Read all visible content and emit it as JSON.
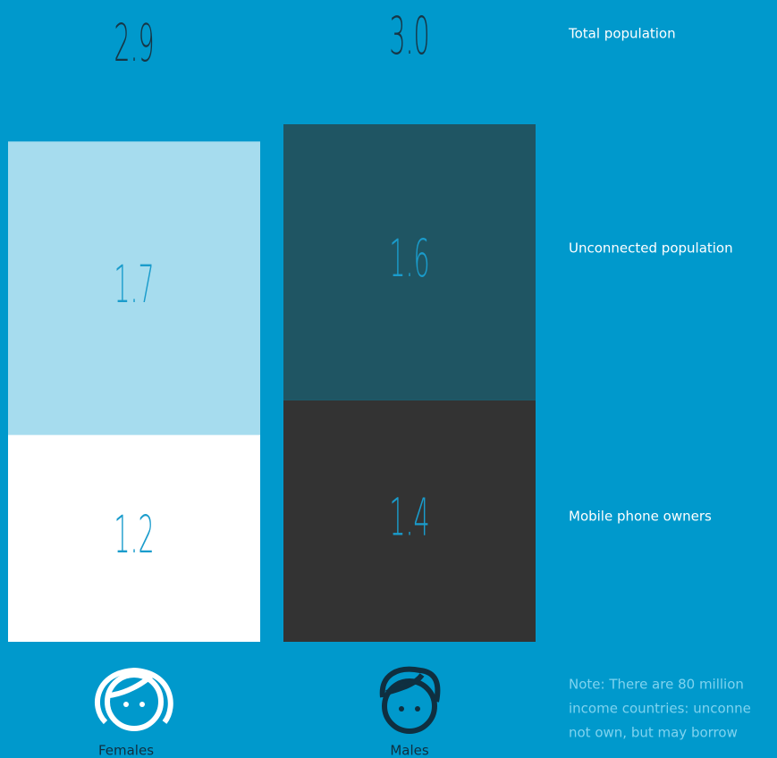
{
  "chart_data": {
    "type": "stacked_bar",
    "categories": [
      "Females",
      "Males"
    ],
    "totals": {
      "name": "Total population",
      "values": [
        2.9,
        3
      ],
      "value_labels": [
        "2.9",
        "3.0"
      ]
    },
    "series": [
      {
        "name": "Mobile phone owners",
        "colors": [
          "#ffffff",
          "#333333"
        ],
        "values": [
          1.2,
          1.4
        ]
      },
      {
        "name": "Unconnected population",
        "colors": [
          "#a6dcee",
          "#1f5563"
        ],
        "values": [
          1.7,
          1.6
        ]
      }
    ],
    "note": [
      "Note: There are 80 million",
      "income countries: unconne",
      "not own, but may borrow"
    ]
  }
}
